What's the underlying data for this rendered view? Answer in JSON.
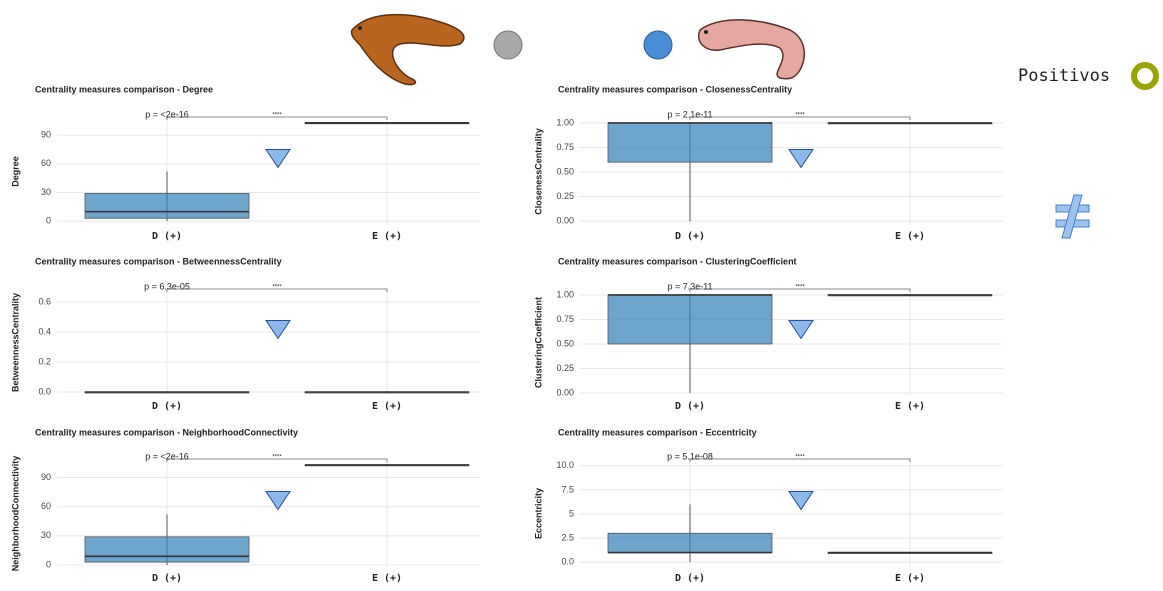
{
  "page": {
    "legend_label": "Positivos"
  },
  "chart_data": [
    {
      "type": "box",
      "title": "Centrality measures comparison - Degree",
      "ylabel": "Degree",
      "categories": [
        "D (+)",
        "E (+)"
      ],
      "box_colors": [
        "#2f7fb8",
        "#9e9e9e"
      ],
      "boxes": [
        {
          "q1": 3,
          "median": 10,
          "q3": 29,
          "whislo": 0,
          "whishi": 52
        },
        {
          "q1": 103,
          "median": 103,
          "q3": 103,
          "whislo": 103,
          "whishi": 103
        }
      ],
      "p_label": "p = <2e-16",
      "signif": "****",
      "ylim": [
        -4,
        108
      ],
      "yticks": [
        0,
        30,
        60,
        90
      ],
      "grid": true
    },
    {
      "type": "box",
      "title": "Centrality measures comparison - ClosenessCentrality",
      "ylabel": "ClosenessCentrality",
      "categories": [
        "D (+)",
        "E (+)"
      ],
      "box_colors": [
        "#2f7fb8",
        "#9e9e9e"
      ],
      "boxes": [
        {
          "q1": 0.6,
          "median": 1,
          "q3": 1,
          "whislo": 0,
          "whishi": 1
        },
        {
          "q1": 1,
          "median": 1,
          "q3": 1,
          "whislo": 1,
          "whishi": 1
        }
      ],
      "p_label": "p = 2.1e-11",
      "signif": "****",
      "ylim": [
        -0.04,
        1.05
      ],
      "yticks": [
        {
          "value": 0,
          "label": "0.00"
        },
        {
          "value": 0.25,
          "label": "0.25"
        },
        {
          "value": 0.5,
          "label": "0.50"
        },
        {
          "value": 0.75,
          "label": "0.75"
        },
        {
          "value": 1,
          "label": "1.00"
        }
      ],
      "grid": true
    },
    {
      "type": "box",
      "title": "Centrality measures comparison - BetweennessCentrality",
      "ylabel": "BetweennessCentrality",
      "categories": [
        "D (+)",
        "E (+)"
      ],
      "box_colors": [
        "#2f7fb8",
        "#9e9e9e"
      ],
      "boxes": [
        {
          "q1": 0,
          "median": 0,
          "q3": 0,
          "whislo": 0,
          "whishi": 0
        },
        {
          "q1": 0,
          "median": 0,
          "q3": 0,
          "whislo": 0,
          "whishi": 0
        }
      ],
      "p_label": "p = 6.3e-05",
      "signif": "****",
      "ylim": [
        -0.02,
        0.68
      ],
      "yticks": [
        {
          "value": 0,
          "label": "0.0"
        },
        0.2,
        0.4,
        0.6
      ],
      "grid": true
    },
    {
      "type": "box",
      "title": "Centrality measures comparison - ClusteringCoefficient",
      "ylabel": "ClusteringCoefficient",
      "categories": [
        "D (+)",
        "E (+)"
      ],
      "box_colors": [
        "#2f7fb8",
        "#9e9e9e"
      ],
      "boxes": [
        {
          "q1": 0.5,
          "median": 1,
          "q3": 1,
          "whislo": 0,
          "whishi": 1
        },
        {
          "q1": 1,
          "median": 1,
          "q3": 1,
          "whislo": 1,
          "whishi": 1
        }
      ],
      "p_label": "p = 7.3e-11",
      "signif": "****",
      "ylim": [
        -0.02,
        1.05
      ],
      "yticks": [
        {
          "value": 0,
          "label": "0.00"
        },
        {
          "value": 0.25,
          "label": "0.25"
        },
        {
          "value": 0.5,
          "label": "0.50"
        },
        {
          "value": 0.75,
          "label": "0.75"
        },
        {
          "value": 1,
          "label": "1.00"
        }
      ],
      "grid": true
    },
    {
      "type": "box",
      "title": "Centrality measures comparison - NeighborhoodConnectivity",
      "ylabel": "NeighborhoodConnectivity",
      "categories": [
        "D (+)",
        "E (+)"
      ],
      "box_colors": [
        "#2f7fb8",
        "#9e9e9e"
      ],
      "boxes": [
        {
          "q1": 3,
          "median": 9,
          "q3": 29,
          "whislo": 0,
          "whishi": 52
        },
        {
          "q1": 103,
          "median": 103,
          "q3": 103,
          "whislo": 103,
          "whishi": 103
        }
      ],
      "p_label": "p = <2e-16",
      "signif": "****",
      "ylim": [
        -2,
        108
      ],
      "yticks": [
        0,
        30,
        60,
        90
      ],
      "grid": true
    },
    {
      "type": "box",
      "title": "Centrality measures comparison - Eccentricity",
      "ylabel": "Eccentricity",
      "categories": [
        "D (+)",
        "E (+)"
      ],
      "box_colors": [
        "#2f7fb8",
        "#9e9e9e"
      ],
      "boxes": [
        {
          "q1": 1,
          "median": 1,
          "q3": 3,
          "whislo": 0,
          "whishi": 6
        },
        {
          "q1": 1,
          "median": 1,
          "q3": 1,
          "whislo": 1,
          "whishi": 1
        }
      ],
      "p_label": "p = 5.1e-08",
      "signif": "****",
      "ylim": [
        -0.5,
        10.6
      ],
      "yticks": [
        {
          "value": 0,
          "label": "0.0"
        },
        2.5,
        5,
        7.5,
        {
          "value": 10,
          "label": "10.0"
        }
      ],
      "grid": true
    }
  ]
}
